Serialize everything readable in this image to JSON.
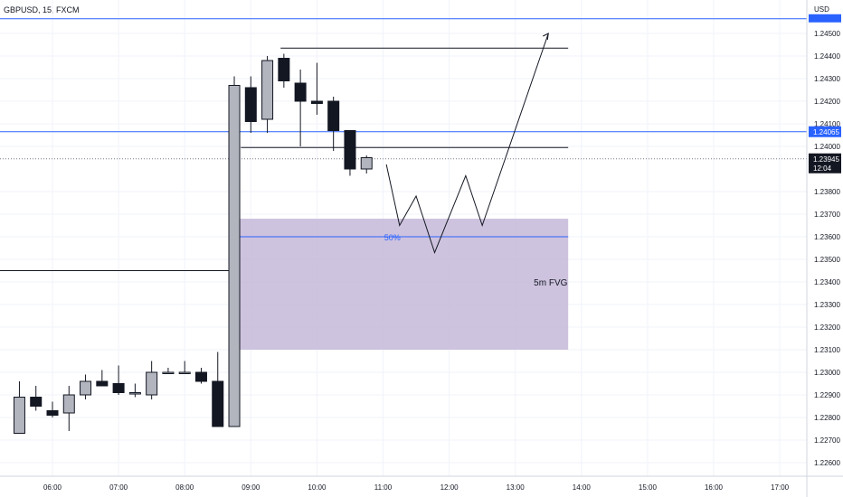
{
  "chart_data": {
    "type": "candlestick",
    "title": "GBPUSD, 15, FXCM",
    "currency": "USD",
    "ylim": [
      1.2257,
      1.2458
    ],
    "price_ticks": [
      "1.24500",
      "1.24400",
      "1.24300",
      "1.24200",
      "1.24100",
      "1.24000",
      "1.23800",
      "1.23700",
      "1.23600",
      "1.23500",
      "1.23400",
      "1.23300",
      "1.23200",
      "1.23100",
      "1.23000",
      "1.22900",
      "1.22800",
      "1.22700",
      "1.22600"
    ],
    "time_ticks": [
      {
        "label": "06:00",
        "hour": 6
      },
      {
        "label": "07:00",
        "hour": 7
      },
      {
        "label": "08:00",
        "hour": 8
      },
      {
        "label": "09:00",
        "hour": 9
      },
      {
        "label": "10:00",
        "hour": 10
      },
      {
        "label": "11:00",
        "hour": 11
      },
      {
        "label": "12:00",
        "hour": 12
      },
      {
        "label": "13:00",
        "hour": 13
      },
      {
        "label": "14:00",
        "hour": 14
      },
      {
        "label": "15:00",
        "hour": 15
      },
      {
        "label": "16:00",
        "hour": 16
      },
      {
        "label": "17:00",
        "hour": 17
      }
    ],
    "candles": [
      {
        "t": 5.5,
        "o": 1.2273,
        "h": 1.2296,
        "l": 1.2273,
        "c": 1.2289
      },
      {
        "t": 5.75,
        "o": 1.2289,
        "h": 1.2294,
        "l": 1.2283,
        "c": 1.2285
      },
      {
        "t": 6.0,
        "o": 1.2283,
        "h": 1.2287,
        "l": 1.228,
        "c": 1.2281
      },
      {
        "t": 6.25,
        "o": 1.2282,
        "h": 1.2294,
        "l": 1.2274,
        "c": 1.229
      },
      {
        "t": 6.5,
        "o": 1.229,
        "h": 1.2299,
        "l": 1.2288,
        "c": 1.2296
      },
      {
        "t": 6.75,
        "o": 1.2296,
        "h": 1.2301,
        "l": 1.2294,
        "c": 1.2294
      },
      {
        "t": 7.0,
        "o": 1.2295,
        "h": 1.2303,
        "l": 1.229,
        "c": 1.2291
      },
      {
        "t": 7.25,
        "o": 1.2291,
        "h": 1.2295,
        "l": 1.2289,
        "c": 1.2291
      },
      {
        "t": 7.5,
        "o": 1.229,
        "h": 1.2305,
        "l": 1.2288,
        "c": 1.23
      },
      {
        "t": 7.75,
        "o": 1.23,
        "h": 1.2302,
        "l": 1.23,
        "c": 1.23
      },
      {
        "t": 8.0,
        "o": 1.23,
        "h": 1.2305,
        "l": 1.23,
        "c": 1.23
      },
      {
        "t": 8.25,
        "o": 1.23,
        "h": 1.2302,
        "l": 1.2295,
        "c": 1.2296
      },
      {
        "t": 8.5,
        "o": 1.2296,
        "h": 1.2309,
        "l": 1.2276,
        "c": 1.2276
      },
      {
        "t": 8.75,
        "o": 1.2276,
        "h": 1.2431,
        "l": 1.2276,
        "c": 1.2427
      },
      {
        "t": 9.0,
        "o": 1.2426,
        "h": 1.2431,
        "l": 1.2406,
        "c": 1.2411
      },
      {
        "t": 9.25,
        "o": 1.2412,
        "h": 1.244,
        "l": 1.2406,
        "c": 1.2438
      },
      {
        "t": 9.5,
        "o": 1.2439,
        "h": 1.2441,
        "l": 1.2426,
        "c": 1.2429
      },
      {
        "t": 9.75,
        "o": 1.2428,
        "h": 1.2434,
        "l": 1.24,
        "c": 1.242
      },
      {
        "t": 10.0,
        "o": 1.242,
        "h": 1.2437,
        "l": 1.2414,
        "c": 1.2419
      },
      {
        "t": 10.25,
        "o": 1.242,
        "h": 1.2422,
        "l": 1.2398,
        "c": 1.2407
      },
      {
        "t": 10.5,
        "o": 1.2407,
        "h": 1.2407,
        "l": 1.2387,
        "c": 1.239
      },
      {
        "t": 10.75,
        "o": 1.239,
        "h": 1.2396,
        "l": 1.2388,
        "c": 1.2395
      }
    ],
    "horizontal_lines": [
      {
        "name": "top blue line",
        "price": 1.24565,
        "color": "#2962ff",
        "from_hour": 5.2,
        "to_hour": 18.0
      },
      {
        "name": "high level",
        "price": 1.24435,
        "color": "#131722",
        "from_hour": 9.45,
        "to_hour": 13.8
      },
      {
        "name": "blue level",
        "price": 1.24065,
        "color": "#2962ff",
        "from_hour": 5.2,
        "to_hour": 18.0
      },
      {
        "name": "close dotted",
        "price": 1.23945,
        "color": "#787b86",
        "from_hour": 5.2,
        "to_hour": 18.0,
        "dotted": true
      },
      {
        "name": "mid level",
        "price": 1.23995,
        "color": "#131722",
        "from_hour": 8.85,
        "to_hour": 13.8
      },
      {
        "name": "left level",
        "price": 1.2345,
        "color": "#131722",
        "from_hour": 5.2,
        "to_hour": 8.8
      }
    ],
    "fvg_zone": {
      "label": "5m FVG",
      "top": 1.2368,
      "bottom": 1.231,
      "from_hour": 8.7,
      "to_hour": 13.8,
      "color": "#c5b8d8"
    },
    "fifty_line": {
      "label": "50%",
      "price": 1.236,
      "color": "#2962ff"
    },
    "projection_path": [
      {
        "t": 11.05,
        "p": 1.2392
      },
      {
        "t": 11.25,
        "p": 1.2365
      },
      {
        "t": 11.5,
        "p": 1.2378
      },
      {
        "t": 11.78,
        "p": 1.2353
      },
      {
        "t": 12.25,
        "p": 1.2387
      },
      {
        "t": 12.5,
        "p": 1.2365
      },
      {
        "t": 13.5,
        "p": 1.245
      }
    ],
    "badges": [
      {
        "label": "1.24065",
        "price": 1.24065,
        "bg": "#2962ff"
      },
      {
        "label": "1.23945",
        "sublabel": "12:04",
        "price": 1.23945,
        "bg": "#131722"
      }
    ],
    "colors": {
      "bull": "#b2b5be",
      "bear": "#131722",
      "grid": "#f0f3fa",
      "axis": "#131722"
    }
  }
}
